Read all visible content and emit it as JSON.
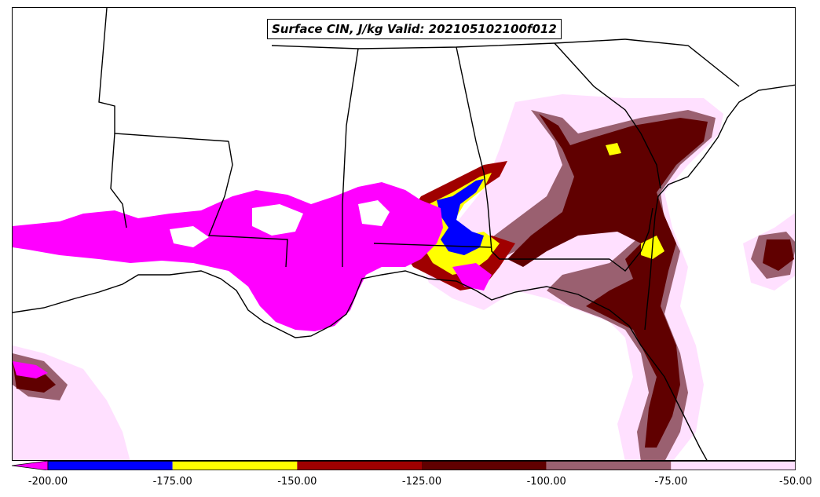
{
  "title": "Surface CIN, J/kg Valid: 202105102100f012",
  "colorbar": {
    "colors": [
      "#ff00ff",
      "#0000ff",
      "#ffff00",
      "#a00000",
      "#600000",
      "#9a6070",
      "#ffe0ff"
    ],
    "tick_labels": [
      "-200.00",
      "-175.00",
      "-150.00",
      "-125.00",
      "-100.00",
      "-75.00",
      "-50.00"
    ]
  },
  "legend": {
    "levels": [
      -200,
      -175,
      -150,
      -125,
      -100,
      -75,
      -50
    ],
    "units": "J/kg"
  }
}
